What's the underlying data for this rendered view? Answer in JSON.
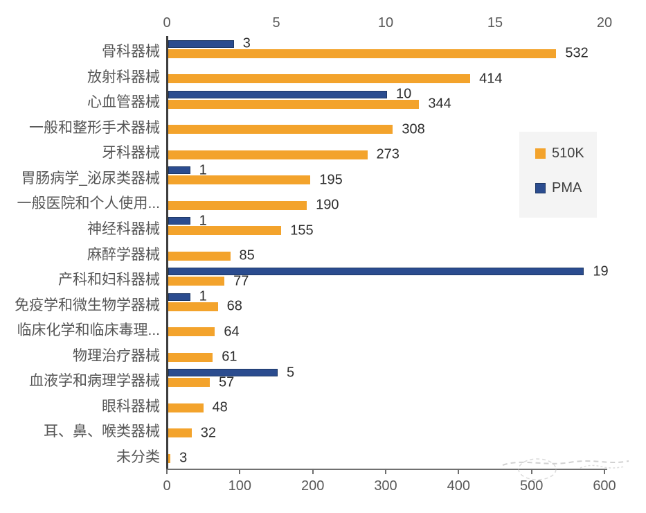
{
  "chart_data": {
    "type": "bar",
    "orientation": "horizontal",
    "categories": [
      "骨科器械",
      "放射科器械",
      "心血管器械",
      "一般和整形手术器械",
      "牙科器械",
      "胃肠病学_泌尿类器械",
      "一般医院和个人使用...",
      "神经科器械",
      "麻醉学器械",
      "产科和妇科器械",
      "免疫学和微生物学器械",
      "临床化学和临床毒理...",
      "物理治疗器械",
      "血液学和病理学器械",
      "眼科器械",
      "耳、鼻、喉类器械",
      "未分类"
    ],
    "series": [
      {
        "name": "510K",
        "color": "#F3A32C",
        "axis": "bottom",
        "values": [
          532,
          414,
          344,
          308,
          273,
          195,
          190,
          155,
          85,
          77,
          68,
          64,
          61,
          57,
          48,
          32,
          3
        ]
      },
      {
        "name": "PMA",
        "color": "#2B4C8F",
        "axis": "top",
        "values": [
          3,
          0,
          10,
          0,
          0,
          1,
          0,
          1,
          0,
          19,
          1,
          0,
          0,
          5,
          0,
          0,
          0
        ]
      }
    ],
    "top_axis": {
      "min": 0,
      "max": 20,
      "ticks": [
        0,
        5,
        10,
        15,
        20
      ]
    },
    "bottom_axis": {
      "min": 0,
      "max": 600,
      "ticks": [
        0,
        100,
        200,
        300,
        400,
        500,
        600
      ]
    },
    "legend": {
      "position": "right",
      "items": [
        "510K",
        "PMA"
      ]
    },
    "grid": false,
    "data_labels": true
  },
  "colors": {
    "series_510k": "#F3A32C",
    "series_pma": "#2B4C8F",
    "axis_text": "#595959",
    "category_text": "#565656",
    "value_text": "#2d2d2d",
    "legend_bg": "#f4f4f4"
  }
}
